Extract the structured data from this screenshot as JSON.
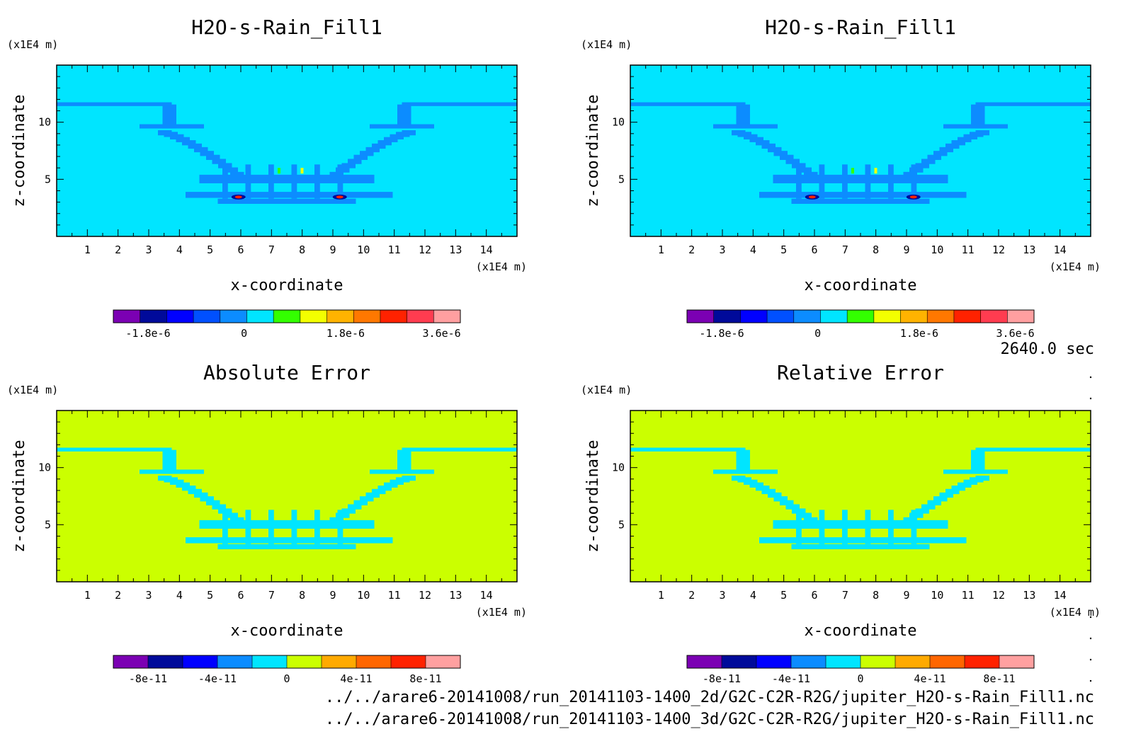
{
  "palette": {
    "cyan": "#00e5ff",
    "blue": "#0c8cff",
    "yellowgreen": "#cbff00",
    "deepblue": "#0000ff",
    "green": "#33ff00",
    "yellow": "#f3ff00",
    "red": "#ff2200",
    "navy": "#000a9a"
  },
  "chart_data": [
    {
      "type": "heatmap",
      "title": "H2O-s-Rain_Fill1",
      "xlabel": "x-coordinate",
      "ylabel": "z-coordinate",
      "x_unit": "(x1E4 m)",
      "y_unit": "(x1E4 m)",
      "xlim": [
        0,
        15
      ],
      "ylim": [
        0,
        15
      ],
      "x_ticks": [
        "1",
        "2",
        "3",
        "4",
        "5",
        "6",
        "7",
        "8",
        "9",
        "10",
        "11",
        "12",
        "13",
        "14"
      ],
      "y_ticks": [
        "5",
        "10"
      ],
      "colorbar": {
        "colors": [
          "#7b00b3",
          "#000a9a",
          "#0000ff",
          "#0050ff",
          "#0c8cff",
          "#00e5ff",
          "#33ff00",
          "#f3ff00",
          "#ffb300",
          "#ff7800",
          "#ff2200",
          "#ff3c50",
          "#ff9fa0"
        ],
        "labels": [
          "-1.8e-6",
          "0",
          "1.8e-6",
          "3.6e-6"
        ]
      }
    },
    {
      "type": "heatmap",
      "title": "H2O-s-Rain_Fill1",
      "xlabel": "x-coordinate",
      "ylabel": "z-coordinate",
      "x_unit": "(x1E4 m)",
      "y_unit": "(x1E4 m)",
      "xlim": [
        0,
        15
      ],
      "ylim": [
        0,
        15
      ],
      "x_ticks": [
        "1",
        "2",
        "3",
        "4",
        "5",
        "6",
        "7",
        "8",
        "9",
        "10",
        "11",
        "12",
        "13",
        "14"
      ],
      "y_ticks": [
        "5",
        "10"
      ],
      "colorbar": {
        "colors": [
          "#7b00b3",
          "#000a9a",
          "#0000ff",
          "#0050ff",
          "#0c8cff",
          "#00e5ff",
          "#33ff00",
          "#f3ff00",
          "#ffb300",
          "#ff7800",
          "#ff2200",
          "#ff3c50",
          "#ff9fa0"
        ],
        "labels": [
          "-1.8e-6",
          "0",
          "1.8e-6",
          "3.6e-6"
        ]
      }
    },
    {
      "type": "heatmap",
      "title": "Absolute Error",
      "xlabel": "x-coordinate",
      "ylabel": "z-coordinate",
      "x_unit": "(x1E4 m)",
      "y_unit": "(x1E4 m)",
      "xlim": [
        0,
        15
      ],
      "ylim": [
        0,
        15
      ],
      "x_ticks": [
        "1",
        "2",
        "3",
        "4",
        "5",
        "6",
        "7",
        "8",
        "9",
        "10",
        "11",
        "12",
        "13",
        "14"
      ],
      "y_ticks": [
        "5",
        "10"
      ],
      "colorbar": {
        "colors": [
          "#7b00b3",
          "#000a9a",
          "#0000ff",
          "#0c8cff",
          "#00e5ff",
          "#cbff00",
          "#ffaa00",
          "#ff6600",
          "#ff2200",
          "#ffa0a0"
        ],
        "labels": [
          "-8e-11",
          "-4e-11",
          "0",
          "4e-11",
          "8e-11"
        ]
      }
    },
    {
      "type": "heatmap",
      "title": "Relative Error",
      "xlabel": "x-coordinate",
      "ylabel": "z-coordinate",
      "x_unit": "(x1E4 m)",
      "y_unit": "(x1E4 m)",
      "xlim": [
        0,
        15
      ],
      "ylim": [
        0,
        15
      ],
      "x_ticks": [
        "1",
        "2",
        "3",
        "4",
        "5",
        "6",
        "7",
        "8",
        "9",
        "10",
        "11",
        "12",
        "13",
        "14"
      ],
      "y_ticks": [
        "5",
        "10"
      ],
      "colorbar": {
        "colors": [
          "#7b00b3",
          "#000a9a",
          "#0000ff",
          "#0c8cff",
          "#00e5ff",
          "#cbff00",
          "#ffaa00",
          "#ff6600",
          "#ff2200",
          "#ffa0a0"
        ],
        "labels": [
          "-8e-11",
          "-4e-11",
          "0",
          "4e-11",
          "8e-11"
        ]
      }
    }
  ],
  "time_label": "2640.0 sec",
  "file_paths": [
    "../../arare6-20141008/run_20141103-1400_2d/G2C-C2R-R2G/jupiter_H2O-s-Rain_Fill1.nc",
    "../../arare6-20141008/run_20141103-1400_3d/G2C-C2R-R2G/jupiter_H2O-s-Rain_Fill1.nc"
  ]
}
